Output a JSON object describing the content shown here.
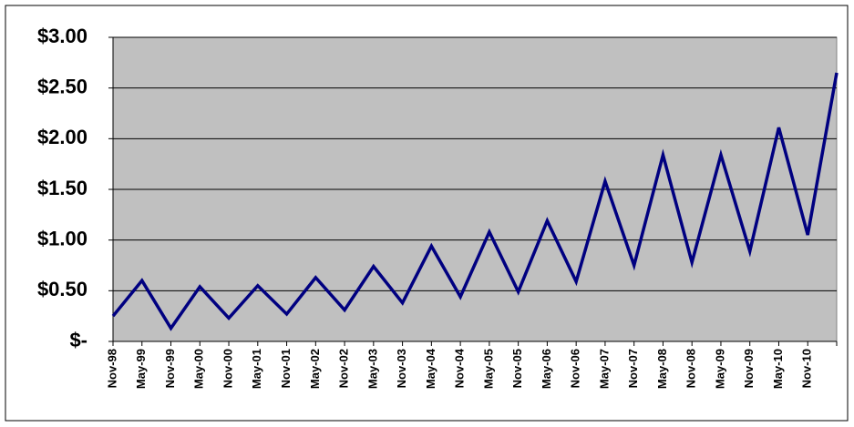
{
  "chart_data": {
    "type": "line",
    "categories": [
      "Nov-98",
      "May-99",
      "Nov-99",
      "May-00",
      "Nov-00",
      "May-01",
      "Nov-01",
      "May-02",
      "Nov-02",
      "May-03",
      "Nov-03",
      "May-04",
      "Nov-04",
      "May-05",
      "Nov-05",
      "May-06",
      "Nov-06",
      "May-07",
      "Nov-07",
      "May-08",
      "Nov-08",
      "May-09",
      "Nov-09",
      "May-10",
      "Nov-10",
      null
    ],
    "values": [
      0.25,
      0.6,
      0.13,
      0.54,
      0.23,
      0.55,
      0.27,
      0.63,
      0.31,
      0.74,
      0.38,
      0.94,
      0.44,
      1.08,
      0.49,
      1.19,
      0.59,
      1.58,
      0.75,
      1.84,
      0.78,
      1.84,
      0.89,
      2.11,
      1.05,
      2.65
    ],
    "color": "#000080",
    "ylim": [
      0,
      3
    ],
    "yticks": [
      {
        "value": 0,
        "label": "$-"
      },
      {
        "value": 0.5,
        "label": "$0.50"
      },
      {
        "value": 1,
        "label": "$1.00"
      },
      {
        "value": 1.5,
        "label": "$1.50"
      },
      {
        "value": 2,
        "label": "$2.00"
      },
      {
        "value": 2.5,
        "label": "$2.50"
      },
      {
        "value": 3,
        "label": "$3.00"
      }
    ],
    "grid": true,
    "plot_background": "#c0c0c0"
  }
}
